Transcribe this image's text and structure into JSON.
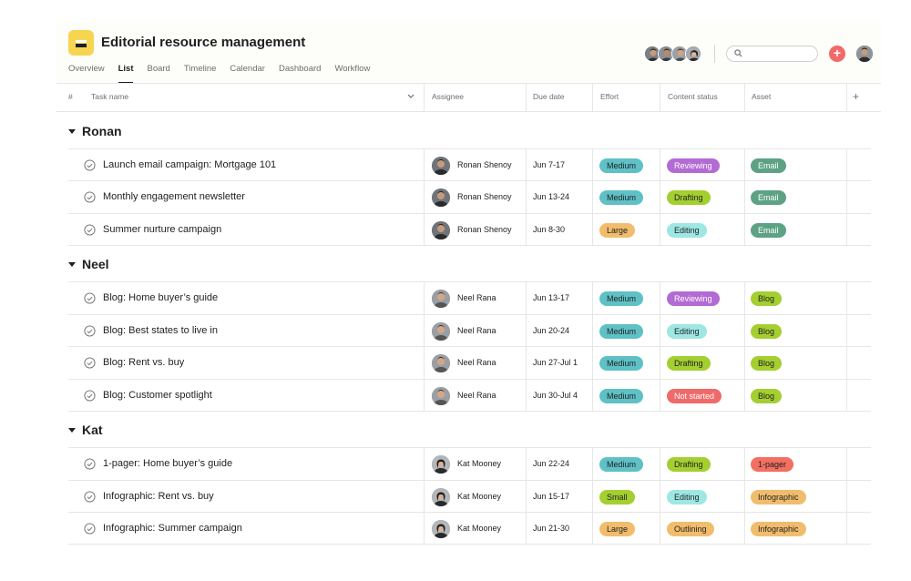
{
  "project": {
    "title": "Editorial resource management",
    "tabs": [
      "Overview",
      "List",
      "Board",
      "Timeline",
      "Calendar",
      "Dashboard",
      "Workflow"
    ],
    "active_tab": "List",
    "accent_color": "#f7d550"
  },
  "toolbar": {
    "add_button_label": "+",
    "add_button_color": "#f06a6a"
  },
  "columns": {
    "num": "#",
    "task_name": "Task name",
    "assignee": "Assignee",
    "due_date": "Due date",
    "effort": "Effort",
    "content_status": "Content status",
    "asset": "Asset",
    "add_column": "+"
  },
  "groups": [
    {
      "name": "Ronan",
      "tasks": [
        {
          "name": "Launch email campaign: Mortgage 101",
          "assignee": "Ronan Shenoy",
          "due": "Jun 7-17",
          "effort": "Medium",
          "status": "Reviewing",
          "asset": "Email"
        },
        {
          "name": "Monthly engagement newsletter",
          "assignee": "Ronan Shenoy",
          "due": "Jun 13-24",
          "effort": "Medium",
          "status": "Drafting",
          "asset": "Email"
        },
        {
          "name": "Summer nurture campaign",
          "assignee": "Ronan Shenoy",
          "due": "Jun 8-30",
          "effort": "Large",
          "status": "Editing",
          "asset": "Email"
        }
      ]
    },
    {
      "name": "Neel",
      "tasks": [
        {
          "name": "Blog: Home buyer’s guide",
          "assignee": "Neel Rana",
          "due": "Jun 13-17",
          "effort": "Medium",
          "status": "Reviewing",
          "asset": "Blog"
        },
        {
          "name": "Blog: Best states to live in",
          "assignee": "Neel Rana",
          "due": "Jun 20-24",
          "effort": "Medium",
          "status": "Editing",
          "asset": "Blog"
        },
        {
          "name": "Blog: Rent vs. buy",
          "assignee": "Neel Rana",
          "due": "Jun 27-Jul 1",
          "effort": "Medium",
          "status": "Drafting",
          "asset": "Blog"
        },
        {
          "name": "Blog: Customer spotlight",
          "assignee": "Neel Rana",
          "due": "Jun 30-Jul 4",
          "effort": "Medium",
          "status": "Not started",
          "asset": "Blog"
        }
      ]
    },
    {
      "name": "Kat",
      "tasks": [
        {
          "name": "1-pager: Home buyer’s guide",
          "assignee": "Kat Mooney",
          "due": "Jun 22-24",
          "effort": "Medium",
          "status": "Drafting",
          "asset": "1-pager"
        },
        {
          "name": "Infographic: Rent vs. buy",
          "assignee": "Kat Mooney",
          "due": "Jun 15-17",
          "effort": "Small",
          "status": "Editing",
          "asset": "Infographic"
        },
        {
          "name": "Infographic: Summer campaign",
          "assignee": "Kat Mooney",
          "due": "Jun 21-30",
          "effort": "Large",
          "status": "Outlining",
          "asset": "Infographic"
        }
      ]
    }
  ],
  "tag_colors": {
    "Medium": {
      "bg": "#5fc1c5",
      "fg": "#1e1f21"
    },
    "Large": {
      "bg": "#f1bd6c",
      "fg": "#1e1f21"
    },
    "Small": {
      "bg": "#a4cf30",
      "fg": "#1e1f21"
    },
    "Reviewing": {
      "bg": "#b36bd4",
      "fg": "#ffffff"
    },
    "Drafting": {
      "bg": "#a4cf30",
      "fg": "#1e1f21"
    },
    "Editing": {
      "bg": "#9ee7e3",
      "fg": "#1e1f21"
    },
    "Not started": {
      "bg": "#f06a6a",
      "fg": "#ffffff"
    },
    "Outlining": {
      "bg": "#f1bd6c",
      "fg": "#1e1f21"
    },
    "Email": {
      "bg": "#5da283",
      "fg": "#ffffff"
    },
    "Blog": {
      "bg": "#a4cf30",
      "fg": "#1e1f21"
    },
    "1-pager": {
      "bg": "#f26f61",
      "fg": "#1e1f21"
    },
    "Infographic": {
      "bg": "#f1bd6c",
      "fg": "#1e1f21"
    }
  }
}
